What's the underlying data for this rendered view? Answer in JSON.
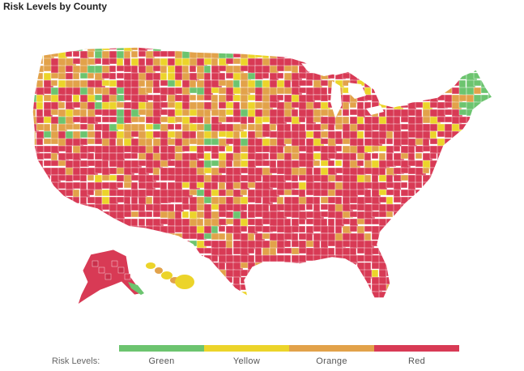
{
  "title": "Risk Levels by County",
  "legend": {
    "title": "Risk Levels:",
    "items": [
      {
        "label": "Green",
        "color": "#6cc46f"
      },
      {
        "label": "Yellow",
        "color": "#ecd42a"
      },
      {
        "label": "Orange",
        "color": "#e2a24a"
      },
      {
        "label": "Red",
        "color": "#d83a55"
      }
    ]
  },
  "colors": {
    "red": "#d83a55",
    "orange": "#e2a24a",
    "yellow": "#ecd42a",
    "green": "#6cc46f",
    "border": "#ffffff"
  }
}
